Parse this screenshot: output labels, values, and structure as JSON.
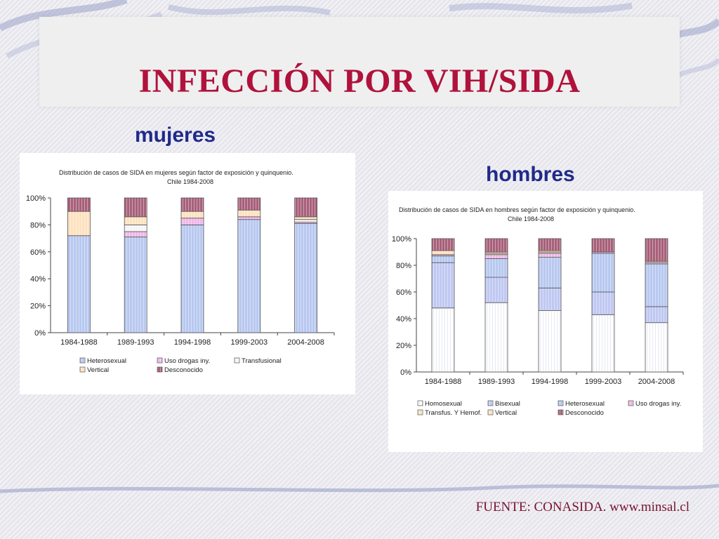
{
  "title": "INFECCIÓN POR VIH/SIDA",
  "source": "FUENTE: CONASIDA. www.minsal.cl",
  "colors": {
    "title": "#b0123c",
    "subhead": "#1f2a8a",
    "Heterosexual": "#b8c8f0",
    "Uso drogas iny.": "#f0b8e8",
    "Transfusional": "#f5f5f5",
    "Vertical": "#fde2c0",
    "Desconocido": "#a8607a",
    "Homosexual": "#ffffff",
    "Bisexual": "#c0c8f2",
    "Transfus. Y Hemof.": "#fde2c0"
  },
  "chart_data": [
    {
      "type": "bar",
      "stacked": true,
      "label": "mujeres",
      "title": "Distribución de casos de SIDA en mujeres según factor de exposición y quinquenio.",
      "subtitle": "Chile 1984-2008",
      "categories": [
        "1984-1988",
        "1989-1993",
        "1994-1998",
        "1999-2003",
        "2004-2008"
      ],
      "ylim": [
        0,
        100
      ],
      "yticks": [
        "0%",
        "20%",
        "40%",
        "60%",
        "80%",
        "100%"
      ],
      "legend": "bottom",
      "series": [
        {
          "name": "Heterosexual",
          "values": [
            72,
            71,
            80,
            84,
            81
          ]
        },
        {
          "name": "Uso drogas iny.",
          "values": [
            0,
            4,
            5,
            2,
            1
          ]
        },
        {
          "name": "Transfusional",
          "values": [
            0,
            5,
            0,
            0,
            2
          ]
        },
        {
          "name": "Vertical",
          "values": [
            18,
            6,
            5,
            5,
            2
          ]
        },
        {
          "name": "Desconocido",
          "values": [
            10,
            14,
            10,
            9,
            14
          ]
        }
      ]
    },
    {
      "type": "bar",
      "stacked": true,
      "label": "hombres",
      "title": "Distribución de casos de SIDA en hombres según factor de exposición y quinquenio.",
      "subtitle": "Chile 1984-2008",
      "categories": [
        "1984-1988",
        "1989-1993",
        "1994-1998",
        "1999-2003",
        "2004-2008"
      ],
      "ylim": [
        0,
        100
      ],
      "yticks": [
        "0%",
        "20%",
        "40%",
        "60%",
        "80%",
        "100%"
      ],
      "legend": "bottom",
      "series": [
        {
          "name": "Homosexual",
          "values": [
            48,
            52,
            46,
            43,
            37
          ]
        },
        {
          "name": "Bisexual",
          "values": [
            34,
            19,
            17,
            17,
            12
          ]
        },
        {
          "name": "Heterosexual",
          "values": [
            5,
            14,
            23,
            29,
            32
          ]
        },
        {
          "name": "Uso drogas iny.",
          "values": [
            1,
            3,
            3,
            1,
            1
          ]
        },
        {
          "name": "Transfus. Y Hemof.",
          "values": [
            3,
            1,
            1,
            0,
            0
          ]
        },
        {
          "name": "Vertical",
          "values": [
            0,
            1,
            1,
            0,
            1
          ]
        },
        {
          "name": "Desconocido",
          "values": [
            9,
            10,
            9,
            10,
            17
          ]
        }
      ]
    }
  ]
}
